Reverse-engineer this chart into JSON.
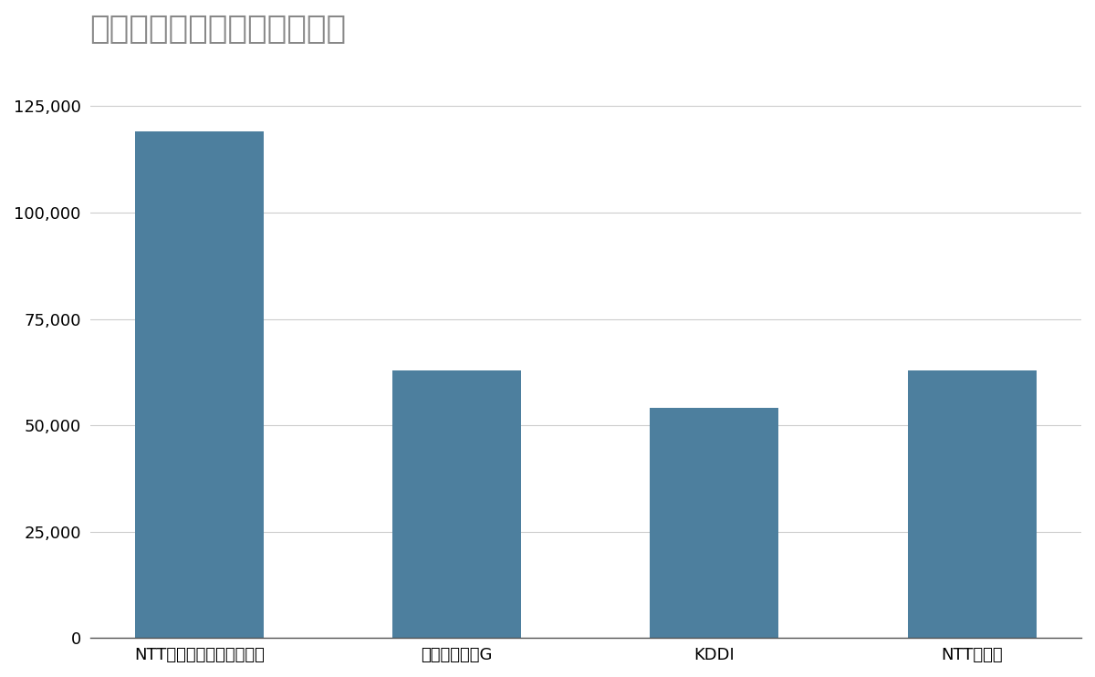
{
  "title": "競合含む年間売上高（億円）",
  "categories": [
    "NTTコミュニケーションズ",
    "ソフトバンクG",
    "KDDI",
    "NTTドコモ"
  ],
  "values": [
    119000,
    63000,
    54000,
    63000
  ],
  "bar_color": "#4d7f9e",
  "ylim": [
    0,
    135000
  ],
  "yticks": [
    0,
    25000,
    50000,
    75000,
    100000,
    125000
  ],
  "background_color": "#ffffff",
  "title_color": "#888888",
  "title_fontsize": 26,
  "tick_fontsize": 13,
  "grid_color": "#cccccc",
  "axis_color": "#555555"
}
